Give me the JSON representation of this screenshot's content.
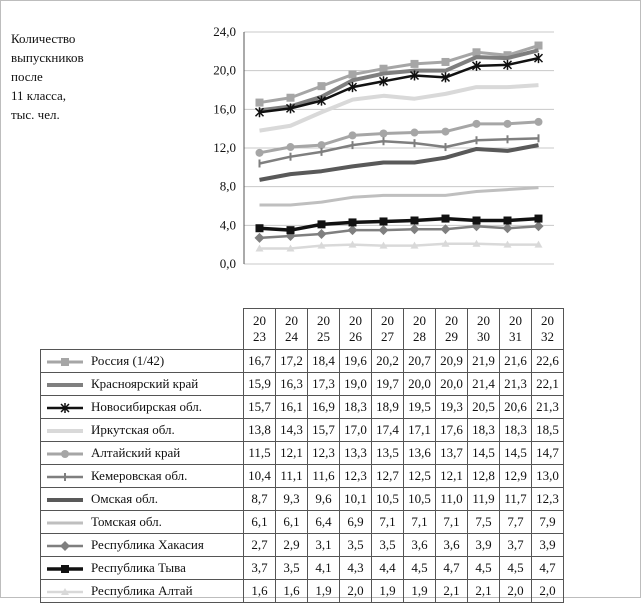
{
  "chart_data": {
    "type": "line",
    "ylabel_lines": [
      "Количество",
      "выпускников",
      "после",
      "11 класса,",
      "тыс. чел."
    ],
    "yticks": [
      "0,0",
      "4,0",
      "8,0",
      "12,0",
      "16,0",
      "20,0",
      "24,0"
    ],
    "ylim": [
      0,
      24
    ],
    "grid": true,
    "x_labels": [
      [
        "20",
        "23"
      ],
      [
        "20",
        "24"
      ],
      [
        "20",
        "25"
      ],
      [
        "20",
        "26"
      ],
      [
        "20",
        "27"
      ],
      [
        "20",
        "28"
      ],
      [
        "20",
        "29"
      ],
      [
        "20",
        "30"
      ],
      [
        "20",
        "31"
      ],
      [
        "20",
        "32"
      ]
    ],
    "series": [
      {
        "name": "Россия (1/42)",
        "color": "#a6a6a6",
        "marker": "square",
        "width": 3,
        "values": [
          16.7,
          17.2,
          18.4,
          19.6,
          20.2,
          20.7,
          20.9,
          21.9,
          21.6,
          22.6
        ],
        "labels": [
          "16,7",
          "17,2",
          "18,4",
          "19,6",
          "20,2",
          "20,7",
          "20,9",
          "21,9",
          "21,6",
          "22,6"
        ]
      },
      {
        "name": "Красноярский край",
        "color": "#7f7f7f",
        "marker": "none",
        "width": 4,
        "values": [
          15.9,
          16.3,
          17.3,
          19.0,
          19.7,
          20.0,
          20.0,
          21.4,
          21.3,
          22.1
        ],
        "labels": [
          "15,9",
          "16,3",
          "17,3",
          "19,0",
          "19,7",
          "20,0",
          "20,0",
          "21,4",
          "21,3",
          "22,1"
        ]
      },
      {
        "name": "Новосибирская обл.",
        "color": "#111111",
        "marker": "star",
        "width": 2.5,
        "values": [
          15.7,
          16.1,
          16.9,
          18.3,
          18.9,
          19.5,
          19.3,
          20.5,
          20.6,
          21.3
        ],
        "labels": [
          "15,7",
          "16,1",
          "16,9",
          "18,3",
          "18,9",
          "19,5",
          "19,3",
          "20,5",
          "20,6",
          "21,3"
        ]
      },
      {
        "name": "Иркутская обл.",
        "color": "#d9d9d9",
        "marker": "none",
        "width": 4,
        "values": [
          13.8,
          14.3,
          15.7,
          17.0,
          17.4,
          17.1,
          17.6,
          18.3,
          18.3,
          18.5
        ],
        "labels": [
          "13,8",
          "14,3",
          "15,7",
          "17,0",
          "17,4",
          "17,1",
          "17,6",
          "18,3",
          "18,3",
          "18,5"
        ]
      },
      {
        "name": "Алтайский край",
        "color": "#a6a6a6",
        "marker": "circle",
        "width": 3,
        "values": [
          11.5,
          12.1,
          12.3,
          13.3,
          13.5,
          13.6,
          13.7,
          14.5,
          14.5,
          14.7
        ],
        "labels": [
          "11,5",
          "12,1",
          "12,3",
          "13,3",
          "13,5",
          "13,6",
          "13,7",
          "14,5",
          "14,5",
          "14,7"
        ]
      },
      {
        "name": "Кемеровская обл.",
        "color": "#7f7f7f",
        "marker": "bar",
        "width": 2.5,
        "values": [
          10.4,
          11.1,
          11.6,
          12.3,
          12.7,
          12.5,
          12.1,
          12.8,
          12.9,
          13.0
        ],
        "labels": [
          "10,4",
          "11,1",
          "11,6",
          "12,3",
          "12,7",
          "12,5",
          "12,1",
          "12,8",
          "12,9",
          "13,0"
        ]
      },
      {
        "name": "Омская обл.",
        "color": "#595959",
        "marker": "none",
        "width": 4,
        "values": [
          8.7,
          9.3,
          9.6,
          10.1,
          10.5,
          10.5,
          11.0,
          11.9,
          11.7,
          12.3
        ],
        "labels": [
          "8,7",
          "9,3",
          "9,6",
          "10,1",
          "10,5",
          "10,5",
          "11,0",
          "11,9",
          "11,7",
          "12,3"
        ]
      },
      {
        "name": "Томская обл.",
        "color": "#bfbfbf",
        "marker": "none",
        "width": 3,
        "values": [
          6.1,
          6.1,
          6.4,
          6.9,
          7.1,
          7.1,
          7.1,
          7.5,
          7.7,
          7.9
        ],
        "labels": [
          "6,1",
          "6,1",
          "6,4",
          "6,9",
          "7,1",
          "7,1",
          "7,1",
          "7,5",
          "7,7",
          "7,9"
        ]
      },
      {
        "name": "Республика Хакасия",
        "color": "#7f7f7f",
        "marker": "diamond",
        "width": 2.5,
        "values": [
          2.7,
          2.9,
          3.1,
          3.5,
          3.5,
          3.6,
          3.6,
          3.9,
          3.7,
          3.9
        ],
        "labels": [
          "2,7",
          "2,9",
          "3,1",
          "3,5",
          "3,5",
          "3,6",
          "3,6",
          "3,9",
          "3,7",
          "3,9"
        ]
      },
      {
        "name": "Республика Тыва",
        "color": "#111111",
        "marker": "square",
        "width": 3.5,
        "values": [
          3.7,
          3.5,
          4.1,
          4.3,
          4.4,
          4.5,
          4.7,
          4.5,
          4.5,
          4.7
        ],
        "labels": [
          "3,7",
          "3,5",
          "4,1",
          "4,3",
          "4,4",
          "4,5",
          "4,7",
          "4,5",
          "4,5",
          "4,7"
        ]
      },
      {
        "name": "Республика Алтай",
        "color": "#d9d9d9",
        "marker": "triangle",
        "width": 2.5,
        "values": [
          1.6,
          1.6,
          1.9,
          2.0,
          1.9,
          1.9,
          2.1,
          2.1,
          2.0,
          2.0
        ],
        "labels": [
          "1,6",
          "1,6",
          "1,9",
          "2,0",
          "1,9",
          "1,9",
          "2,1",
          "2,1",
          "2,0",
          "2,0"
        ]
      }
    ]
  }
}
